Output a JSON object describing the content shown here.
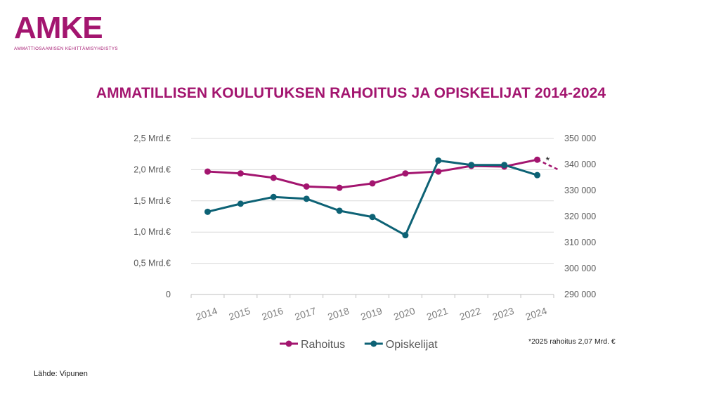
{
  "logo": {
    "name": "AMKE",
    "subtitle": "AMMATTIOSAAMISEN KEHITTÄMISYHDISTYS"
  },
  "colors": {
    "brand": "#a3156f",
    "rahoitus": "#a3156f",
    "opiskelijat": "#0d6275",
    "grid": "#d9d9d9",
    "axis_text": "#595959"
  },
  "chart_data": {
    "type": "line",
    "title": "AMMATILLISEN KOULUTUKSEN RAHOITUS JA OPISKELIJAT 2014-2024",
    "categories": [
      "2014",
      "2015",
      "2016",
      "2017",
      "2018",
      "2019",
      "2020",
      "2021",
      "2022",
      "2023",
      "2024"
    ],
    "y_left": {
      "ticks": [
        0,
        0.5,
        1.0,
        1.5,
        2.0,
        2.5
      ],
      "tick_labels": [
        "0",
        "0,5 Mrd.€",
        "1,0 Mrd.€",
        "1,5 Mrd.€",
        "2,0 Mrd.€",
        "2,5 Mrd.€"
      ],
      "range": [
        0,
        2.5
      ]
    },
    "y_right": {
      "ticks": [
        290000,
        300000,
        310000,
        320000,
        330000,
        340000,
        350000
      ],
      "tick_labels": [
        "290 000",
        "300 000",
        "310 000",
        "320 000",
        "330 000",
        "340 000",
        "350 000"
      ],
      "range": [
        290000,
        350000
      ]
    },
    "grid": true,
    "legend_position": "bottom",
    "series": [
      {
        "name": "Rahoitus",
        "axis": "left",
        "values": [
          1.97,
          1.94,
          1.87,
          1.73,
          1.71,
          1.78,
          1.94,
          1.97,
          2.06,
          2.05,
          2.16
        ]
      },
      {
        "name": "Opiskelijat",
        "axis": "right",
        "values": [
          321800,
          324900,
          327500,
          326800,
          322200,
          319800,
          312800,
          341500,
          339800,
          339800,
          335900
        ]
      }
    ],
    "projection": {
      "label": "*",
      "category": "2025",
      "value": 2.07
    },
    "footnote": "*2025 rahoitus 2,07 Mrd. €"
  },
  "source": "Lähde: Vipunen"
}
